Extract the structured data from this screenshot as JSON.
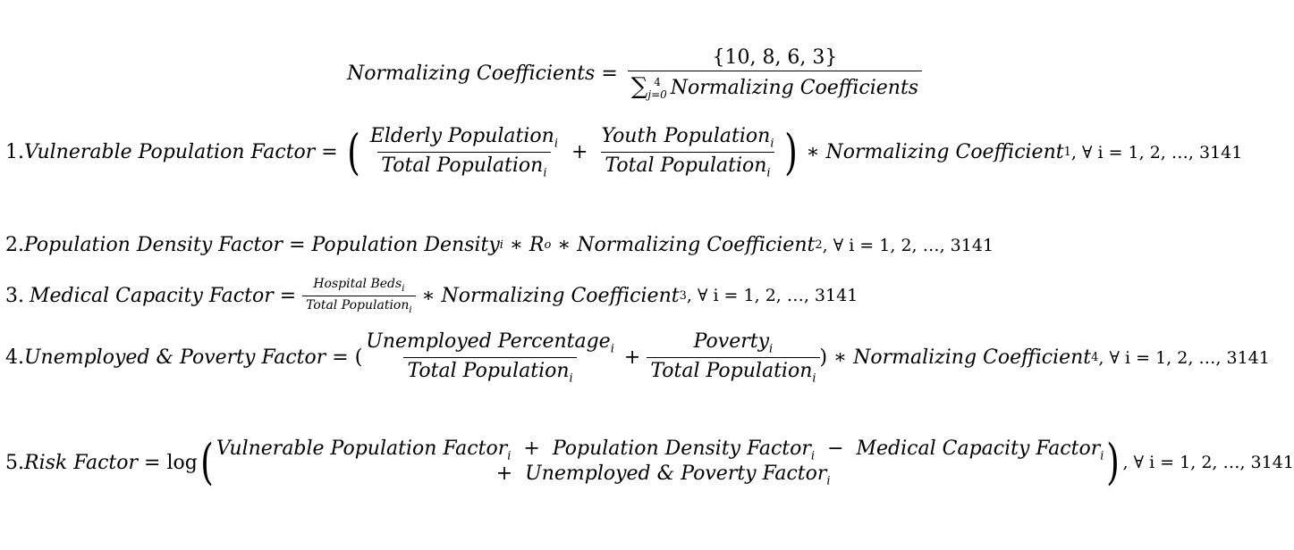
{
  "norm": {
    "lhs": "Normalizing Coefficients",
    "eq": "=",
    "num": "{10, 8, 6, 3}",
    "sum": "∑",
    "sum_upper": "4",
    "sum_lower": "j=0",
    "den_text": "Normalizing Coefficients"
  },
  "f1": {
    "label": "1.",
    "lhs": "Vulnerable Population Factor",
    "a_num": "Elderly Population",
    "a_den": "Total Population",
    "b_num": "Youth Population",
    "b_den": "Total Population",
    "sub_i": "i",
    "coef": "Normalizing Coefficient",
    "coef_sub": "1",
    "forall": ", ∀ i = 1, 2, …, 3141"
  },
  "f2": {
    "label": "2.",
    "lhs": "Population Density Factor",
    "term": "Population Density",
    "r0": "R",
    "r0_sub": "o",
    "coef": "Normalizing Coefficient",
    "coef_sub": "2",
    "forall": ", ∀ i = 1, 2, …, 3141"
  },
  "f3": {
    "label": "3.",
    "lhs": "Medical Capacity Factor",
    "num": "Hospital Beds",
    "den": "Total Population",
    "coef": "Normalizing Coefficient",
    "coef_sub": "3",
    "forall": ", ∀ i = 1, 2, …, 3141"
  },
  "f4": {
    "label": "4.",
    "lhs": "Unemployed & Poverty Factor",
    "a_num": "Unemployed Percentage",
    "a_den": "Total Population",
    "b_num": "Poverty",
    "b_den": "Total Population",
    "coef": "Normalizing Coefficient",
    "coef_sub": "4",
    "forall": ", ∀ i = 1, 2, …, 3141"
  },
  "f5": {
    "label": "5.",
    "lhs": "Risk Factor",
    "log": "log",
    "t1": "Vulnerable Population Factor",
    "t2": "Population Density Factor",
    "t3": "Medical Capacity Factor",
    "t4": "Unemployed & Poverty Factor",
    "forall": ", ∀ i = 1, 2, …, 3141"
  },
  "ops": {
    "eq": "=",
    "plus": "+",
    "minus": "−",
    "times": "∗",
    "lparen": "(",
    "rparen": ")"
  }
}
